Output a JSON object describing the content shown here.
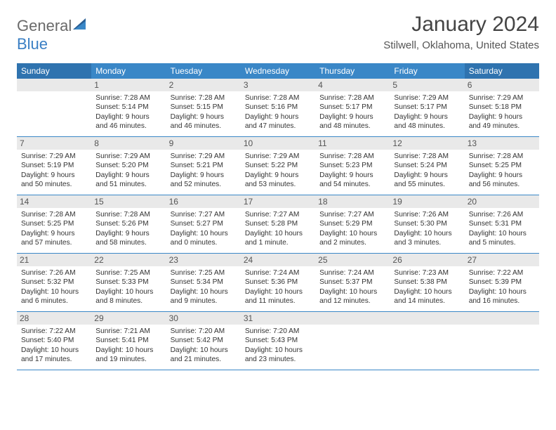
{
  "logo": {
    "part1": "General",
    "part2": "Blue"
  },
  "title": "January 2024",
  "location": "Stilwell, Oklahoma, United States",
  "colors": {
    "header_bg": "#3a87c7",
    "header_text": "#ffffff",
    "daynum_bg": "#e9e9e9",
    "week_border": "#3a87c7",
    "logo_gray": "#6a6a6a",
    "logo_blue": "#3a7fc4"
  },
  "day_names": [
    "Sunday",
    "Monday",
    "Tuesday",
    "Wednesday",
    "Thursday",
    "Friday",
    "Saturday"
  ],
  "weeks": [
    [
      {
        "num": "",
        "sunrise": "",
        "sunset": "",
        "daylight": ""
      },
      {
        "num": "1",
        "sunrise": "Sunrise: 7:28 AM",
        "sunset": "Sunset: 5:14 PM",
        "daylight": "Daylight: 9 hours and 46 minutes."
      },
      {
        "num": "2",
        "sunrise": "Sunrise: 7:28 AM",
        "sunset": "Sunset: 5:15 PM",
        "daylight": "Daylight: 9 hours and 46 minutes."
      },
      {
        "num": "3",
        "sunrise": "Sunrise: 7:28 AM",
        "sunset": "Sunset: 5:16 PM",
        "daylight": "Daylight: 9 hours and 47 minutes."
      },
      {
        "num": "4",
        "sunrise": "Sunrise: 7:28 AM",
        "sunset": "Sunset: 5:17 PM",
        "daylight": "Daylight: 9 hours and 48 minutes."
      },
      {
        "num": "5",
        "sunrise": "Sunrise: 7:29 AM",
        "sunset": "Sunset: 5:17 PM",
        "daylight": "Daylight: 9 hours and 48 minutes."
      },
      {
        "num": "6",
        "sunrise": "Sunrise: 7:29 AM",
        "sunset": "Sunset: 5:18 PM",
        "daylight": "Daylight: 9 hours and 49 minutes."
      }
    ],
    [
      {
        "num": "7",
        "sunrise": "Sunrise: 7:29 AM",
        "sunset": "Sunset: 5:19 PM",
        "daylight": "Daylight: 9 hours and 50 minutes."
      },
      {
        "num": "8",
        "sunrise": "Sunrise: 7:29 AM",
        "sunset": "Sunset: 5:20 PM",
        "daylight": "Daylight: 9 hours and 51 minutes."
      },
      {
        "num": "9",
        "sunrise": "Sunrise: 7:29 AM",
        "sunset": "Sunset: 5:21 PM",
        "daylight": "Daylight: 9 hours and 52 minutes."
      },
      {
        "num": "10",
        "sunrise": "Sunrise: 7:29 AM",
        "sunset": "Sunset: 5:22 PM",
        "daylight": "Daylight: 9 hours and 53 minutes."
      },
      {
        "num": "11",
        "sunrise": "Sunrise: 7:28 AM",
        "sunset": "Sunset: 5:23 PM",
        "daylight": "Daylight: 9 hours and 54 minutes."
      },
      {
        "num": "12",
        "sunrise": "Sunrise: 7:28 AM",
        "sunset": "Sunset: 5:24 PM",
        "daylight": "Daylight: 9 hours and 55 minutes."
      },
      {
        "num": "13",
        "sunrise": "Sunrise: 7:28 AM",
        "sunset": "Sunset: 5:25 PM",
        "daylight": "Daylight: 9 hours and 56 minutes."
      }
    ],
    [
      {
        "num": "14",
        "sunrise": "Sunrise: 7:28 AM",
        "sunset": "Sunset: 5:25 PM",
        "daylight": "Daylight: 9 hours and 57 minutes."
      },
      {
        "num": "15",
        "sunrise": "Sunrise: 7:28 AM",
        "sunset": "Sunset: 5:26 PM",
        "daylight": "Daylight: 9 hours and 58 minutes."
      },
      {
        "num": "16",
        "sunrise": "Sunrise: 7:27 AM",
        "sunset": "Sunset: 5:27 PM",
        "daylight": "Daylight: 10 hours and 0 minutes."
      },
      {
        "num": "17",
        "sunrise": "Sunrise: 7:27 AM",
        "sunset": "Sunset: 5:28 PM",
        "daylight": "Daylight: 10 hours and 1 minute."
      },
      {
        "num": "18",
        "sunrise": "Sunrise: 7:27 AM",
        "sunset": "Sunset: 5:29 PM",
        "daylight": "Daylight: 10 hours and 2 minutes."
      },
      {
        "num": "19",
        "sunrise": "Sunrise: 7:26 AM",
        "sunset": "Sunset: 5:30 PM",
        "daylight": "Daylight: 10 hours and 3 minutes."
      },
      {
        "num": "20",
        "sunrise": "Sunrise: 7:26 AM",
        "sunset": "Sunset: 5:31 PM",
        "daylight": "Daylight: 10 hours and 5 minutes."
      }
    ],
    [
      {
        "num": "21",
        "sunrise": "Sunrise: 7:26 AM",
        "sunset": "Sunset: 5:32 PM",
        "daylight": "Daylight: 10 hours and 6 minutes."
      },
      {
        "num": "22",
        "sunrise": "Sunrise: 7:25 AM",
        "sunset": "Sunset: 5:33 PM",
        "daylight": "Daylight: 10 hours and 8 minutes."
      },
      {
        "num": "23",
        "sunrise": "Sunrise: 7:25 AM",
        "sunset": "Sunset: 5:34 PM",
        "daylight": "Daylight: 10 hours and 9 minutes."
      },
      {
        "num": "24",
        "sunrise": "Sunrise: 7:24 AM",
        "sunset": "Sunset: 5:36 PM",
        "daylight": "Daylight: 10 hours and 11 minutes."
      },
      {
        "num": "25",
        "sunrise": "Sunrise: 7:24 AM",
        "sunset": "Sunset: 5:37 PM",
        "daylight": "Daylight: 10 hours and 12 minutes."
      },
      {
        "num": "26",
        "sunrise": "Sunrise: 7:23 AM",
        "sunset": "Sunset: 5:38 PM",
        "daylight": "Daylight: 10 hours and 14 minutes."
      },
      {
        "num": "27",
        "sunrise": "Sunrise: 7:22 AM",
        "sunset": "Sunset: 5:39 PM",
        "daylight": "Daylight: 10 hours and 16 minutes."
      }
    ],
    [
      {
        "num": "28",
        "sunrise": "Sunrise: 7:22 AM",
        "sunset": "Sunset: 5:40 PM",
        "daylight": "Daylight: 10 hours and 17 minutes."
      },
      {
        "num": "29",
        "sunrise": "Sunrise: 7:21 AM",
        "sunset": "Sunset: 5:41 PM",
        "daylight": "Daylight: 10 hours and 19 minutes."
      },
      {
        "num": "30",
        "sunrise": "Sunrise: 7:20 AM",
        "sunset": "Sunset: 5:42 PM",
        "daylight": "Daylight: 10 hours and 21 minutes."
      },
      {
        "num": "31",
        "sunrise": "Sunrise: 7:20 AM",
        "sunset": "Sunset: 5:43 PM",
        "daylight": "Daylight: 10 hours and 23 minutes."
      },
      {
        "num": "",
        "sunrise": "",
        "sunset": "",
        "daylight": ""
      },
      {
        "num": "",
        "sunrise": "",
        "sunset": "",
        "daylight": ""
      },
      {
        "num": "",
        "sunrise": "",
        "sunset": "",
        "daylight": ""
      }
    ]
  ]
}
